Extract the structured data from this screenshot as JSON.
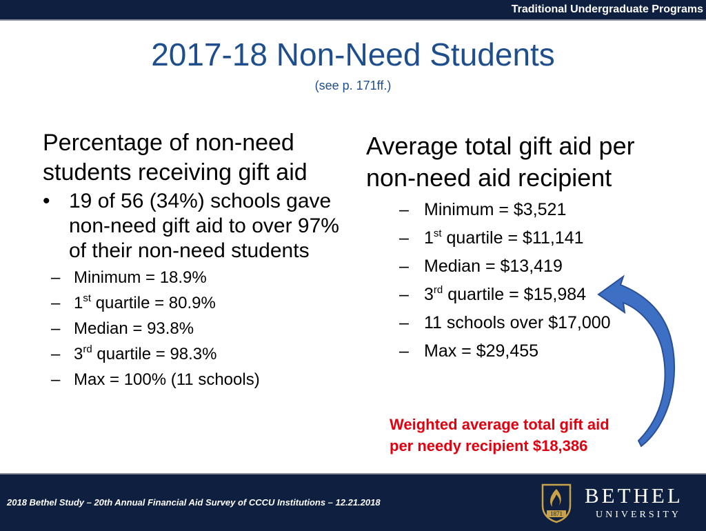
{
  "header": {
    "program_label": "Traditional Undergraduate Programs"
  },
  "slide": {
    "title": "2017-18 Non-Need Students",
    "subtitle": "(see p. 171ff.)"
  },
  "left_column": {
    "heading": "Percentage of non-need students receiving gift aid",
    "bullet_marker": "•",
    "bullet": "19 of 56 (34%) schools gave non-need gift aid to over 97% of their non-need students",
    "stats": [
      {
        "pre": "Minimum = 18.9%",
        "sup": "",
        "post": ""
      },
      {
        "pre": "1",
        "sup": "st",
        "post": " quartile = 80.9%"
      },
      {
        "pre": "Median = 93.8%",
        "sup": "",
        "post": ""
      },
      {
        "pre": "3",
        "sup": "rd",
        "post": " quartile = 98.3%"
      },
      {
        "pre": "Max = 100% (11 schools)",
        "sup": "",
        "post": ""
      }
    ]
  },
  "right_column": {
    "heading": "Average total gift aid per non-need aid recipient",
    "stats": [
      {
        "pre": "Minimum = $3,521",
        "sup": "",
        "post": ""
      },
      {
        "pre": "1",
        "sup": "st",
        "post": " quartile = $11,141"
      },
      {
        "pre": "Median = $13,419",
        "sup": "",
        "post": ""
      },
      {
        "pre": "3",
        "sup": "rd",
        "post": " quartile = $15,984"
      },
      {
        "pre": "11 schools over $17,000",
        "sup": "",
        "post": ""
      },
      {
        "pre": "Max = $29,455",
        "sup": "",
        "post": ""
      }
    ]
  },
  "dash_marker": "–",
  "callout": {
    "line1": "Weighted average total gift aid",
    "line2": "per needy recipient $18,386",
    "color": "#e00010"
  },
  "arrow": {
    "color": "#3d6fc4",
    "icon": "curved-arrow-icon"
  },
  "footer": {
    "text": "2018 Bethel Study – 20th Annual Financial Aid Survey of CCCU Institutions – 12.21.2018",
    "logo_name": "BETHEL",
    "logo_sub": "UNIVERSITY",
    "logo_year": "1871",
    "logo_icon": "flame-shield-icon"
  },
  "colors": {
    "bar": "#0e1f3f",
    "title": "#1f4e8c",
    "logo_gold": "#c9a34a"
  }
}
